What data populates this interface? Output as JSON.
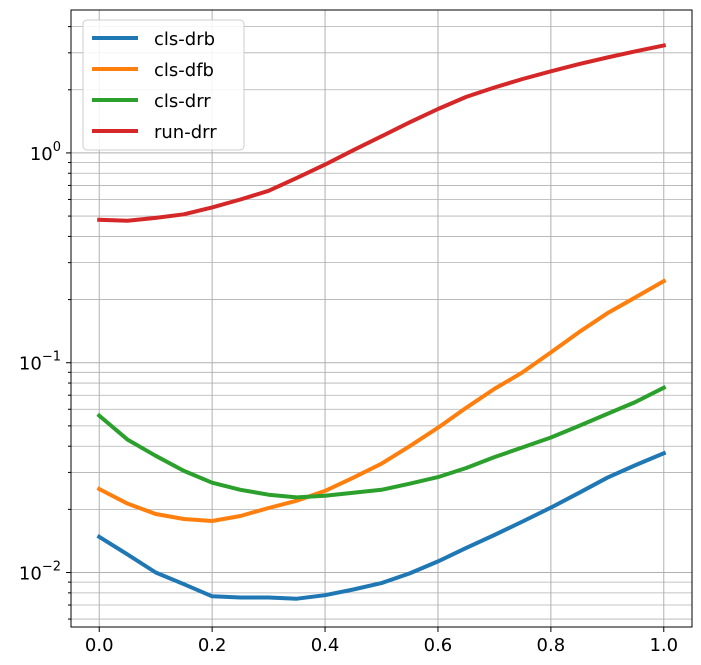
{
  "chart_data": {
    "type": "line",
    "title": "",
    "xlabel": "",
    "ylabel": "",
    "xlim": [
      -0.05,
      1.05
    ],
    "ylim": [
      0.0055,
      4.8
    ],
    "yscale": "log",
    "grid": true,
    "legend_position": "top-left",
    "x_ticks": [
      {
        "value": 0.0,
        "label": "0.0"
      },
      {
        "value": 0.2,
        "label": "0.2"
      },
      {
        "value": 0.4,
        "label": "0.4"
      },
      {
        "value": 0.6,
        "label": "0.6"
      },
      {
        "value": 0.8,
        "label": "0.8"
      },
      {
        "value": 1.0,
        "label": "1.0"
      }
    ],
    "y_ticks": [
      {
        "value": 0.01,
        "base": "10",
        "exp": "−2"
      },
      {
        "value": 0.1,
        "base": "10",
        "exp": "−1"
      },
      {
        "value": 1,
        "base": "10",
        "exp": "0"
      }
    ],
    "x": [
      0.0,
      0.05,
      0.1,
      0.15,
      0.2,
      0.25,
      0.3,
      0.35,
      0.4,
      0.45,
      0.5,
      0.55,
      0.6,
      0.65,
      0.7,
      0.75,
      0.8,
      0.85,
      0.9,
      0.95,
      1.0
    ],
    "series": [
      {
        "name": "cls-drb",
        "color": "#1f77b4",
        "values": [
          0.0148,
          0.0122,
          0.01,
          0.0088,
          0.0077,
          0.0076,
          0.0076,
          0.0075,
          0.0078,
          0.0083,
          0.0089,
          0.0099,
          0.0113,
          0.0131,
          0.0151,
          0.0175,
          0.0204,
          0.024,
          0.0283,
          0.0325,
          0.037
        ]
      },
      {
        "name": "cls-dfb",
        "color": "#ff7f0e",
        "values": [
          0.025,
          0.0213,
          0.019,
          0.018,
          0.0176,
          0.0186,
          0.0203,
          0.022,
          0.0245,
          0.0283,
          0.033,
          0.04,
          0.049,
          0.061,
          0.075,
          0.09,
          0.112,
          0.14,
          0.172,
          0.205,
          0.245
        ]
      },
      {
        "name": "cls-drr",
        "color": "#2ca02c",
        "values": [
          0.056,
          0.043,
          0.036,
          0.0305,
          0.0268,
          0.0248,
          0.0235,
          0.0228,
          0.0232,
          0.024,
          0.0248,
          0.0265,
          0.0285,
          0.0315,
          0.0355,
          0.0395,
          0.044,
          0.05,
          0.057,
          0.065,
          0.076
        ]
      },
      {
        "name": "run-drr",
        "color": "#d62728",
        "values": [
          0.48,
          0.475,
          0.49,
          0.51,
          0.55,
          0.6,
          0.66,
          0.76,
          0.88,
          1.03,
          1.2,
          1.4,
          1.62,
          1.85,
          2.05,
          2.25,
          2.45,
          2.65,
          2.85,
          3.05,
          3.25
        ]
      }
    ]
  }
}
